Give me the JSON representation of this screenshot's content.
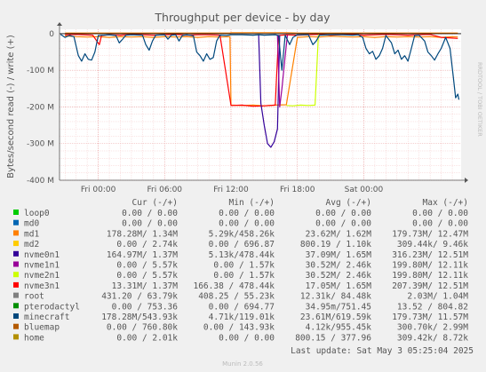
{
  "chart_data": {
    "type": "line",
    "title": "Throughput per device - by day",
    "ylabel": "Bytes/second read (-) / write (+)",
    "side_label": "RRDTOOL / TOBI OETIKER",
    "yticks": [
      {
        "value": 0,
        "label": "0"
      },
      {
        "value": -100,
        "label": "-100 M"
      },
      {
        "value": -200,
        "label": "-200 M"
      },
      {
        "value": -300,
        "label": "-300 M"
      },
      {
        "value": -400,
        "label": "-400 M"
      }
    ],
    "ylim": [
      -400,
      12
    ],
    "xticks": [
      {
        "value": 3,
        "label": "Fri 00:00"
      },
      {
        "value": 9,
        "label": "Fri 06:00"
      },
      {
        "value": 15,
        "label": "Fri 12:00"
      },
      {
        "value": 21,
        "label": "Fri 18:00"
      },
      {
        "value": 27,
        "label": "Sat 00:00"
      }
    ],
    "xlim": [
      -0.5,
      35.8
    ],
    "grid": true,
    "columns": {
      "name": "",
      "cur": "Cur (-/+)",
      "min": "Min (-/+)",
      "avg": "Avg (-/+)",
      "max": "Max (-/+)"
    },
    "series": [
      {
        "name": "loop0",
        "color": "#00cc00",
        "cur": "0.00 /   0.00",
        "min": "0.00 /   0.00",
        "avg": "0.00 /   0.00",
        "max": "0.00 /   0.00"
      },
      {
        "name": "md0",
        "color": "#0066b3",
        "cur": "0.00 /   0.00",
        "min": "0.00 /   0.00",
        "avg": "0.00 /   0.00",
        "max": "0.00 /   0.00"
      },
      {
        "name": "md1",
        "color": "#ff8000",
        "cur": "178.28M/  1.34M",
        "min": "5.29k/458.26k",
        "avg": "23.62M/  1.62M",
        "max": "179.73M/ 12.47M",
        "points": [
          [
            0,
            -6,
            2
          ],
          [
            1,
            -8,
            2
          ],
          [
            2,
            -9,
            2
          ],
          [
            3,
            -8,
            2
          ],
          [
            4,
            -10,
            2
          ],
          [
            5,
            -8,
            2
          ],
          [
            6,
            -9,
            2
          ],
          [
            7,
            -8,
            2
          ],
          [
            8,
            -10,
            2
          ],
          [
            9,
            -8,
            2
          ],
          [
            10,
            -9,
            2
          ],
          [
            11,
            -8,
            2
          ],
          [
            12,
            -10,
            2
          ],
          [
            13,
            -8,
            2
          ],
          [
            14,
            -9,
            2
          ],
          [
            14.9,
            -8,
            2
          ],
          [
            15,
            -195,
            3
          ],
          [
            16,
            -196,
            3
          ],
          [
            17,
            -195,
            3
          ],
          [
            18,
            -197,
            3
          ],
          [
            19,
            -195,
            3
          ],
          [
            20,
            -194,
            3
          ],
          [
            21,
            -10,
            2
          ],
          [
            22,
            -8,
            2
          ],
          [
            23,
            -9,
            2
          ],
          [
            24,
            -7,
            2
          ],
          [
            25,
            -8,
            2
          ],
          [
            26,
            -9,
            2
          ],
          [
            27,
            -8,
            2
          ],
          [
            28,
            -10,
            2
          ],
          [
            29,
            -8,
            2
          ],
          [
            30,
            -9,
            2
          ],
          [
            31,
            -8,
            2
          ],
          [
            32,
            -9,
            2
          ],
          [
            33,
            -8,
            2
          ],
          [
            34,
            -10,
            2
          ],
          [
            35,
            -8,
            2
          ],
          [
            35.5,
            -9,
            2
          ]
        ]
      },
      {
        "name": "md2",
        "color": "#ffcc00",
        "cur": "0.00 /   2.74k",
        "min": "0.00 / 696.87",
        "avg": "800.19 /   1.10k",
        "max": "309.44k/   9.46k"
      },
      {
        "name": "nvme0n1",
        "color": "#330099",
        "cur": "164.97M/  1.37M",
        "min": "5.13k/478.44k",
        "avg": "37.09M/  1.65M",
        "max": "316.23M/ 12.51M",
        "points": [
          [
            17.5,
            -2,
            0
          ],
          [
            17.7,
            -190,
            0
          ],
          [
            18,
            -250,
            0
          ],
          [
            18.3,
            -300,
            0
          ],
          [
            18.6,
            -310,
            0
          ],
          [
            18.9,
            -295,
            0
          ],
          [
            19.2,
            -260,
            0
          ],
          [
            19.4,
            -4,
            0
          ]
        ]
      },
      {
        "name": "nvme1n1",
        "color": "#990099",
        "cur": "0.00 /   5.57k",
        "min": "0.00 /   1.57k",
        "avg": "30.52M/  2.46k",
        "max": "199.80M/ 12.11k",
        "points": [
          [
            19.2,
            -4,
            0
          ],
          [
            19.4,
            -200,
            0
          ],
          [
            19.6,
            -150,
            0
          ],
          [
            19.9,
            -60,
            0
          ],
          [
            20.1,
            -4,
            0
          ]
        ]
      },
      {
        "name": "nvme2n1",
        "color": "#ccff00",
        "cur": "0.00 /   5.57k",
        "min": "0.00 /   1.57k",
        "avg": "30.52M/  2.46k",
        "max": "199.80M/ 12.11k",
        "points": [
          [
            20,
            -196,
            0
          ],
          [
            20.6,
            -197,
            0
          ],
          [
            21.3,
            -195,
            0
          ],
          [
            22,
            -196,
            0
          ],
          [
            22.6,
            -195,
            0
          ],
          [
            22.9,
            -2,
            0
          ]
        ]
      },
      {
        "name": "nvme3n1",
        "color": "#ff0000",
        "cur": "13.31M/  1.37M",
        "min": "166.38 / 478.44k",
        "avg": "17.05M/  1.65M",
        "max": "207.39M/ 12.51M",
        "points": [
          [
            0,
            -3,
            0
          ],
          [
            1,
            -2,
            0
          ],
          [
            2.5,
            -4,
            0
          ],
          [
            3.1,
            -30,
            0
          ],
          [
            3.3,
            -5,
            0
          ],
          [
            4,
            -3,
            0
          ],
          [
            5,
            -4,
            0
          ],
          [
            6,
            -2,
            0
          ],
          [
            7,
            -3,
            0
          ],
          [
            8,
            -4,
            0
          ],
          [
            9,
            -3,
            0
          ],
          [
            10,
            -2,
            0
          ],
          [
            11,
            -4,
            0
          ],
          [
            12,
            -3,
            0
          ],
          [
            13,
            -3,
            0
          ],
          [
            14,
            -4,
            0
          ],
          [
            15,
            -196,
            0
          ],
          [
            16,
            -195,
            0
          ],
          [
            17,
            -198,
            0
          ],
          [
            18,
            -197,
            0
          ],
          [
            19,
            -195,
            0
          ],
          [
            19.3,
            -5,
            0
          ],
          [
            20,
            -3,
            0
          ],
          [
            21,
            -4,
            0
          ],
          [
            22,
            -3,
            0
          ],
          [
            23,
            -2,
            0
          ],
          [
            24,
            -4,
            0
          ],
          [
            25,
            -3,
            0
          ],
          [
            26,
            -2,
            0
          ],
          [
            27,
            -4,
            0
          ],
          [
            28,
            -3,
            0
          ],
          [
            29,
            -2,
            0
          ],
          [
            30,
            -3,
            0
          ],
          [
            31,
            -4,
            0
          ],
          [
            32,
            -3,
            0
          ],
          [
            33,
            -2,
            0
          ],
          [
            34,
            -10,
            0
          ],
          [
            35,
            -12,
            0
          ],
          [
            35.5,
            -13,
            0
          ]
        ]
      },
      {
        "name": "root",
        "color": "#808080",
        "cur": "431.20 / 63.79k",
        "min": "408.25 / 55.23k",
        "avg": "12.31k/ 84.48k",
        "max": "2.03M/  1.04M"
      },
      {
        "name": "pterodactyl",
        "color": "#008f00",
        "cur": "0.00 / 753.36",
        "min": "0.00 / 694.77",
        "avg": "34.95m/751.45",
        "max": "13.52 / 804.82"
      },
      {
        "name": "minecraft",
        "color": "#00487d",
        "cur": "178.28M/543.93k",
        "min": "4.71k/119.01k",
        "avg": "23.61M/619.59k",
        "max": "179.73M/ 11.57M",
        "points": [
          [
            -0.4,
            -2,
            0
          ],
          [
            0,
            -10,
            0
          ],
          [
            0.4,
            -5,
            0
          ],
          [
            0.8,
            -8,
            0
          ],
          [
            1.2,
            -60,
            0
          ],
          [
            1.5,
            -75,
            0
          ],
          [
            1.8,
            -55,
            0
          ],
          [
            2.1,
            -70,
            0
          ],
          [
            2.4,
            -72,
            0
          ],
          [
            2.7,
            -50,
            0
          ],
          [
            3,
            -5,
            0
          ],
          [
            4,
            -3,
            0
          ],
          [
            4.6,
            -5,
            0
          ],
          [
            4.9,
            -25,
            0
          ],
          [
            5.2,
            -15,
            0
          ],
          [
            5.5,
            -4,
            0
          ],
          [
            6,
            -3,
            0
          ],
          [
            7,
            -4,
            0
          ],
          [
            7.3,
            -30,
            0
          ],
          [
            7.6,
            -45,
            0
          ],
          [
            7.9,
            -20,
            0
          ],
          [
            8.2,
            -4,
            0
          ],
          [
            9,
            -3,
            0
          ],
          [
            9.3,
            -15,
            0
          ],
          [
            9.6,
            -4,
            0
          ],
          [
            10,
            -3,
            0
          ],
          [
            10.3,
            -20,
            0
          ],
          [
            10.6,
            -5,
            0
          ],
          [
            11,
            -3,
            0
          ],
          [
            11.6,
            -6,
            0
          ],
          [
            11.9,
            -50,
            0
          ],
          [
            12.2,
            -60,
            0
          ],
          [
            12.5,
            -75,
            0
          ],
          [
            12.8,
            -55,
            0
          ],
          [
            13.1,
            -70,
            0
          ],
          [
            13.4,
            -65,
            0
          ],
          [
            13.7,
            -20,
            0
          ],
          [
            14,
            -4,
            0
          ],
          [
            14.6,
            -5,
            0
          ],
          [
            15,
            -3,
            0
          ],
          [
            16,
            -3,
            0
          ],
          [
            17,
            -4,
            0
          ],
          [
            17.5,
            -3,
            0
          ],
          [
            18,
            -4,
            0
          ],
          [
            19,
            -3,
            0
          ],
          [
            19.3,
            -5,
            0
          ],
          [
            19.6,
            -100,
            0
          ],
          [
            19.9,
            -4,
            0
          ],
          [
            20.3,
            -30,
            0
          ],
          [
            20.6,
            -10,
            0
          ],
          [
            21,
            -3,
            0
          ],
          [
            22,
            -3,
            0
          ],
          [
            22.4,
            -30,
            0
          ],
          [
            22.7,
            -20,
            0
          ],
          [
            23,
            -4,
            0
          ],
          [
            24,
            -3,
            0
          ],
          [
            25,
            -3,
            0
          ],
          [
            26,
            -4,
            0
          ],
          [
            26.5,
            -3,
            0
          ],
          [
            26.9,
            -10,
            0
          ],
          [
            27.2,
            -40,
            0
          ],
          [
            27.5,
            -55,
            0
          ],
          [
            27.8,
            -48,
            0
          ],
          [
            28.1,
            -70,
            0
          ],
          [
            28.4,
            -60,
            0
          ],
          [
            28.7,
            -40,
            0
          ],
          [
            29,
            -5,
            0
          ],
          [
            29.5,
            -25,
            0
          ],
          [
            29.8,
            -55,
            0
          ],
          [
            30.1,
            -45,
            0
          ],
          [
            30.4,
            -70,
            0
          ],
          [
            30.7,
            -60,
            0
          ],
          [
            31,
            -75,
            0
          ],
          [
            31.3,
            -40,
            0
          ],
          [
            31.6,
            -5,
            0
          ],
          [
            32,
            -4,
            0
          ],
          [
            32.5,
            -20,
            0
          ],
          [
            32.8,
            -50,
            0
          ],
          [
            33.1,
            -60,
            0
          ],
          [
            33.4,
            -72,
            0
          ],
          [
            33.7,
            -55,
            0
          ],
          [
            34,
            -40,
            0
          ],
          [
            34.4,
            -10,
            0
          ],
          [
            34.8,
            -40,
            0
          ],
          [
            35.1,
            -120,
            0
          ],
          [
            35.3,
            -175,
            0
          ],
          [
            35.5,
            -165,
            0
          ],
          [
            35.6,
            -180,
            0
          ]
        ]
      },
      {
        "name": "bluemap",
        "color": "#b35a00",
        "cur": "0.00 / 760.80k",
        "min": "0.00 / 143.93k",
        "avg": "4.12k/955.45k",
        "max": "300.70k/  2.99M"
      },
      {
        "name": "home",
        "color": "#b38f00",
        "cur": "0.00 /   2.01k",
        "min": "0.00 /   0.00",
        "avg": "800.15 / 377.96",
        "max": "309.42k/   8.72k"
      }
    ],
    "last_update": "Last update: Sat May  3 05:25:04 2025",
    "footer": "Munin 2.0.56"
  }
}
